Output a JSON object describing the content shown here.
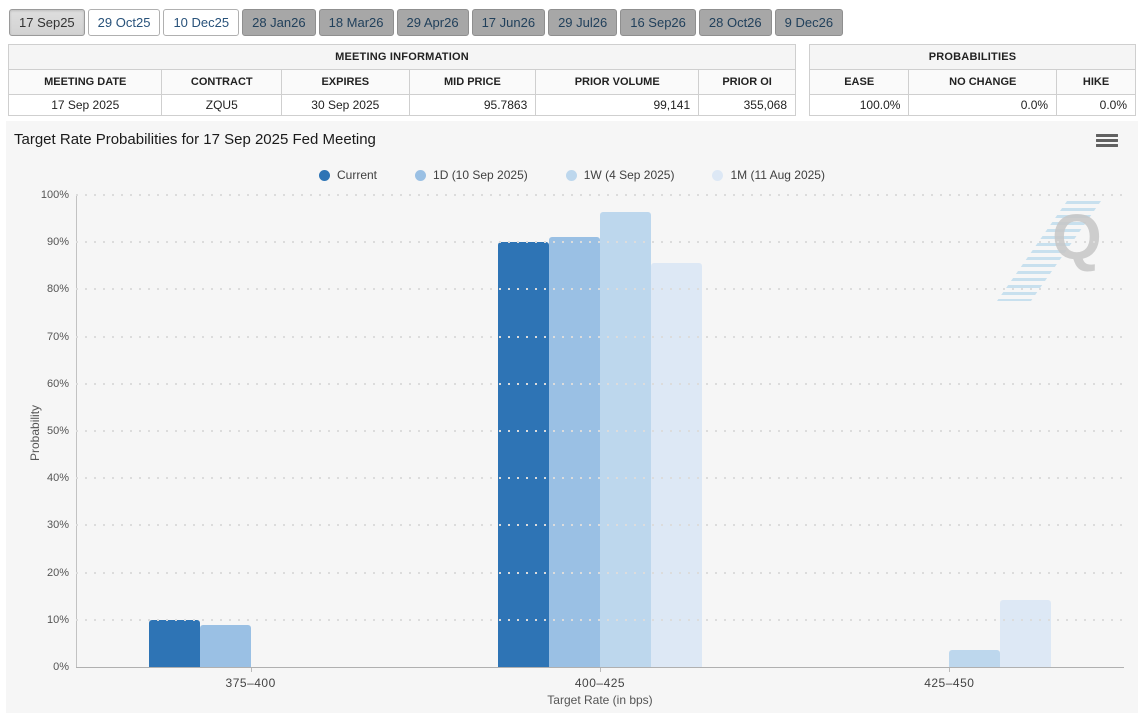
{
  "date_tabs": [
    {
      "label": "17 Sep25",
      "style": "selected"
    },
    {
      "label": "29 Oct25",
      "style": "light"
    },
    {
      "label": "10 Dec25",
      "style": "light"
    },
    {
      "label": "28 Jan26",
      "style": "dark"
    },
    {
      "label": "18 Mar26",
      "style": "dark"
    },
    {
      "label": "29 Apr26",
      "style": "dark"
    },
    {
      "label": "17 Jun26",
      "style": "dark"
    },
    {
      "label": "29 Jul26",
      "style": "dark"
    },
    {
      "label": "16 Sep26",
      "style": "dark"
    },
    {
      "label": "28 Oct26",
      "style": "dark"
    },
    {
      "label": "9 Dec26",
      "style": "dark"
    }
  ],
  "meeting_info": {
    "title": "MEETING INFORMATION",
    "columns": [
      "MEETING DATE",
      "CONTRACT",
      "EXPIRES",
      "MID PRICE",
      "PRIOR VOLUME",
      "PRIOR OI"
    ],
    "values": [
      "17 Sep 2025",
      "ZQU5",
      "30 Sep 2025",
      "95.7863",
      "99,141",
      "355,068"
    ],
    "align": [
      "center",
      "center",
      "center",
      "right",
      "right",
      "right"
    ]
  },
  "probabilities": {
    "title": "PROBABILITIES",
    "columns": [
      "EASE",
      "NO CHANGE",
      "HIKE"
    ],
    "values": [
      "100.0%",
      "0.0%",
      "0.0%"
    ],
    "align": [
      "right",
      "right",
      "right"
    ]
  },
  "chart_data": {
    "type": "bar",
    "title": "Target Rate Probabilities for 17 Sep 2025 Fed Meeting",
    "categories": [
      "375–400",
      "400–425",
      "425–450"
    ],
    "series": [
      {
        "name": "Current",
        "color": "#2e74b5",
        "values": [
          9.9,
          90.1,
          0
        ]
      },
      {
        "name": "1D (10 Sep 2025)",
        "color": "#9ac0e4",
        "values": [
          8.8,
          91.2,
          0
        ]
      },
      {
        "name": "1W (4 Sep 2025)",
        "color": "#bdd7ed",
        "values": [
          0,
          96.4,
          3.6
        ]
      },
      {
        "name": "1M (11 Aug 2025)",
        "color": "#dde8f5",
        "values": [
          0,
          85.7,
          14.3
        ]
      }
    ],
    "xlabel": "Target Rate (in bps)",
    "ylabel": "Probability",
    "ylim": [
      0,
      100
    ],
    "ytick_step": 10,
    "ytick_suffix": "%",
    "grid": "dotted-horizontal",
    "legend_position": "top-center"
  },
  "icons": {
    "menu": "hamburger-menu-icon"
  },
  "watermark": {
    "letter": "Q"
  },
  "colors": {
    "panel_bg": "#f6f6f6",
    "accent_navy_text": "#28527a"
  }
}
